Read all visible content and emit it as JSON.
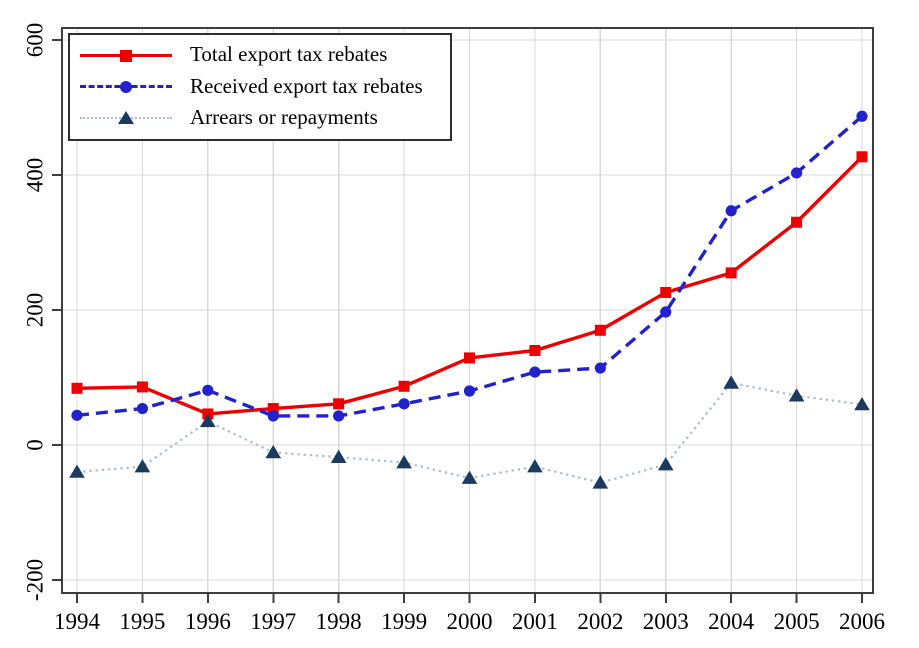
{
  "chart_data": {
    "type": "line",
    "title": "",
    "xlabel": "",
    "ylabel": "",
    "x": [
      "1994",
      "1995",
      "1996",
      "1997",
      "1998",
      "1999",
      "2000",
      "2001",
      "2002",
      "2003",
      "2004",
      "2005",
      "2006"
    ],
    "ylim": [
      -200,
      600
    ],
    "yticks": [
      -200,
      0,
      200,
      400,
      600
    ],
    "grid": true,
    "legend_position": "top-left",
    "series": [
      {
        "name": "Total export tax rebates",
        "line_style": "solid",
        "marker": "square",
        "color": "#ee0000",
        "marker_color": "#ee0000",
        "values": [
          84,
          86,
          46,
          54,
          61,
          87,
          129,
          140,
          170,
          226,
          255,
          330,
          427
        ]
      },
      {
        "name": "Received export tax rebates",
        "line_style": "dashed",
        "marker": "circle",
        "color": "#2222cc",
        "marker_color": "#2222cc",
        "values": [
          44,
          54,
          81,
          43,
          43,
          61,
          80,
          108,
          114,
          197,
          347,
          403,
          487
        ]
      },
      {
        "name": "Arrears or repayments",
        "line_style": "dotted",
        "marker": "triangle",
        "color": "#a9bfd4",
        "marker_color": "#1b3a5f",
        "values": [
          -40,
          -32,
          35,
          -11,
          -18,
          -26,
          -49,
          -32,
          -56,
          -29,
          92,
          73,
          60
        ]
      }
    ],
    "style": {
      "axis_color": "#3d3d3d",
      "grid_color": "#d9d9d9",
      "text_color": "#000000",
      "background": "#ffffff"
    }
  }
}
